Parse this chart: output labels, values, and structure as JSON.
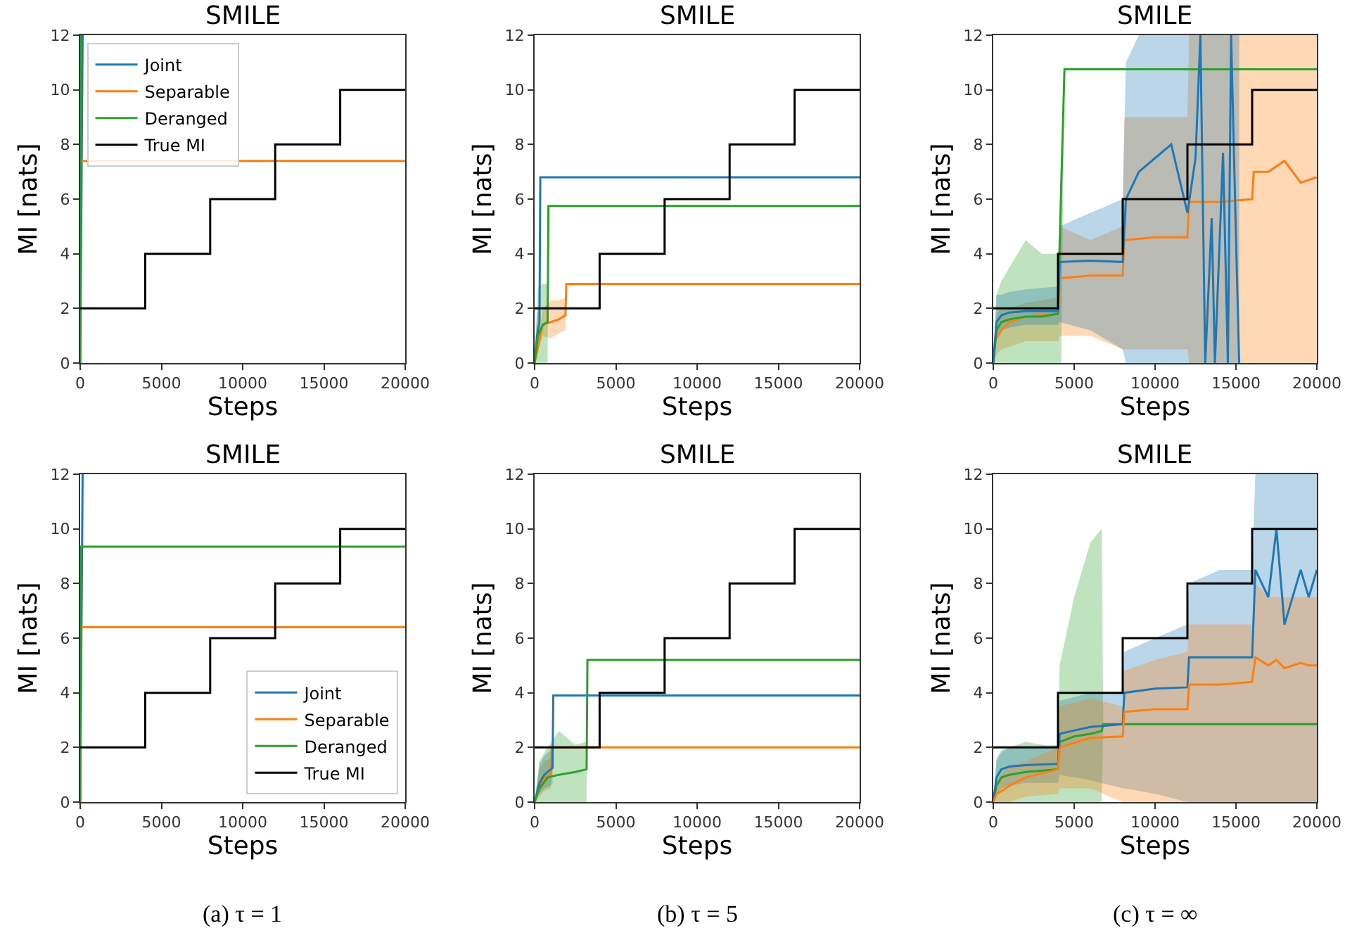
{
  "chart_data": [
    {
      "type": "line",
      "title": "SMILE",
      "xlabel": "Steps",
      "ylabel": "MI [nats]",
      "xlim": [
        0,
        20000
      ],
      "ylim": [
        0,
        12
      ],
      "xticks": [
        0,
        5000,
        10000,
        15000,
        20000
      ],
      "yticks": [
        0,
        2,
        4,
        6,
        8,
        10,
        12
      ],
      "legend": "top left",
      "series": [
        {
          "name": "Joint",
          "color": "#1f77b4",
          "x": [
            0,
            150
          ],
          "values": [
            0,
            12
          ]
        },
        {
          "name": "Separable",
          "color": "#ff7f0e",
          "x": [
            40,
            20000
          ],
          "values": [
            7.4,
            7.4
          ]
        },
        {
          "name": "Deranged",
          "color": "#2ca02c",
          "x": [
            0,
            50
          ],
          "values": [
            0,
            12
          ]
        },
        {
          "name": "True MI",
          "color": "#000000",
          "x": [
            0,
            4000,
            4000,
            8000,
            8000,
            12000,
            12000,
            16000,
            16000,
            20000
          ],
          "values": [
            2,
            2,
            4,
            4,
            6,
            6,
            8,
            8,
            10,
            10
          ]
        }
      ]
    },
    {
      "type": "line",
      "title": "SMILE",
      "xlabel": "Steps",
      "ylabel": "MI [nats]",
      "xlim": [
        0,
        20000
      ],
      "ylim": [
        0,
        12
      ],
      "xticks": [
        0,
        5000,
        10000,
        15000,
        20000
      ],
      "yticks": [
        0,
        2,
        4,
        6,
        8,
        10,
        12
      ],
      "series": [
        {
          "color": "#1f77b4",
          "x": [
            0,
            150,
            300,
            350,
            20000
          ],
          "values": [
            0,
            1.0,
            1.5,
            6.8,
            6.8
          ],
          "lower": [
            0,
            0.5,
            1.0,
            6.8,
            6.8
          ],
          "upper": [
            0,
            1.8,
            2.0,
            6.8,
            6.8
          ]
        },
        {
          "color": "#ff7f0e",
          "x": [
            0,
            500,
            1000,
            1500,
            1900,
            1950,
            20000
          ],
          "values": [
            0,
            1.4,
            1.5,
            1.6,
            1.75,
            2.9,
            2.9
          ],
          "lower": [
            0,
            1.0,
            0.9,
            1.1,
            1.2,
            2.9,
            2.9
          ],
          "upper": [
            0,
            2.0,
            2.3,
            2.3,
            2.4,
            2.9,
            2.9
          ]
        },
        {
          "color": "#2ca02c",
          "x": [
            0,
            200,
            500,
            800,
            850,
            20000
          ],
          "values": [
            0,
            1.0,
            1.4,
            1.5,
            5.75,
            5.75
          ],
          "lower": [
            0,
            0,
            0,
            0,
            5.75,
            5.75
          ],
          "upper": [
            0,
            2.8,
            2.9,
            2.9,
            5.75,
            5.75
          ]
        },
        {
          "color": "#000000",
          "x": [
            0,
            4000,
            4000,
            8000,
            8000,
            12000,
            12000,
            16000,
            16000,
            20000
          ],
          "values": [
            2,
            2,
            4,
            4,
            6,
            6,
            8,
            8,
            10,
            10
          ]
        }
      ]
    },
    {
      "type": "line",
      "title": "SMILE",
      "xlabel": "Steps",
      "ylabel": "MI [nats]",
      "xlim": [
        0,
        20000
      ],
      "ylim": [
        0,
        12
      ],
      "xticks": [
        0,
        5000,
        10000,
        15000,
        20000
      ],
      "yticks": [
        0,
        2,
        4,
        6,
        8,
        10,
        12
      ],
      "series": [
        {
          "color": "#ff7f0e",
          "x": [
            0,
            200,
            500,
            1000,
            2000,
            4000,
            4100,
            6000,
            8000,
            8100,
            10000,
            12000,
            12100,
            14000,
            16000,
            16100,
            17000,
            18000,
            19000,
            20000
          ],
          "values": [
            null,
            0.9,
            1.2,
            1.5,
            1.7,
            1.8,
            3.1,
            3.2,
            3.2,
            4.5,
            4.6,
            4.6,
            5.9,
            5.9,
            6.0,
            7.0,
            7.0,
            7.4,
            6.6,
            6.8
          ],
          "lower": [
            0,
            0.3,
            0.5,
            0.6,
            0.8,
            0.8,
            1.0,
            1.0,
            0.5,
            0.5,
            0.5,
            0.5,
            0,
            0,
            0,
            0,
            0,
            0,
            0,
            0
          ],
          "upper": [
            0,
            1.8,
            2.0,
            2.0,
            2.2,
            2.4,
            5.0,
            4.5,
            5.0,
            9.0,
            9.0,
            9.0,
            12,
            12,
            12,
            12,
            12,
            12,
            12,
            12
          ]
        },
        {
          "color": "#2ca02c",
          "x": [
            0,
            200,
            500,
            1000,
            2000,
            3000,
            4000,
            4200,
            4400,
            20000
          ],
          "values": [
            0,
            1.2,
            1.5,
            1.6,
            1.7,
            1.7,
            1.8,
            6.5,
            10.75,
            10.75
          ],
          "lower": [
            0,
            0,
            0,
            0,
            0,
            0,
            0,
            0,
            10.75,
            10.75
          ],
          "upper": [
            0,
            2.5,
            3.0,
            3.5,
            4.5,
            4.0,
            4.0,
            7.0,
            10.75,
            10.75
          ]
        },
        {
          "color": "#1f77b4",
          "x": [
            0,
            200,
            500,
            1000,
            2000,
            4000,
            4100,
            6000,
            8000,
            8200,
            9000,
            10000,
            11000,
            12000,
            12500,
            12800,
            13100,
            13500,
            13700,
            14200,
            14500,
            14700,
            15000,
            15200
          ],
          "values": [
            0,
            1.5,
            1.75,
            1.85,
            1.9,
            1.9,
            3.7,
            3.75,
            3.7,
            6.0,
            7.0,
            7.5,
            8.0,
            5.5,
            7.5,
            12,
            0,
            5.3,
            0,
            7.7,
            0,
            12,
            4.6,
            0
          ],
          "lower": [
            0,
            0.8,
            1.2,
            1.3,
            1.4,
            1.4,
            1.5,
            1.2,
            0.5,
            0,
            0,
            0,
            0,
            0,
            0,
            0,
            0,
            0,
            0,
            0,
            0,
            0,
            0,
            0
          ],
          "upper": [
            0,
            2.5,
            2.5,
            2.6,
            2.7,
            2.8,
            5.0,
            5.5,
            6.0,
            11,
            12,
            12,
            12,
            12,
            12,
            12,
            12,
            12,
            12,
            12,
            12,
            12,
            12,
            12
          ]
        },
        {
          "color": "#000000",
          "x": [
            0,
            4000,
            4000,
            8000,
            8000,
            12000,
            12000,
            16000,
            16000,
            20000
          ],
          "values": [
            2,
            2,
            4,
            4,
            6,
            6,
            8,
            8,
            10,
            10
          ]
        }
      ]
    },
    {
      "type": "line",
      "title": "SMILE",
      "xlabel": "Steps",
      "ylabel": "MI [nats]",
      "xlim": [
        0,
        20000
      ],
      "ylim": [
        0,
        12
      ],
      "xticks": [
        0,
        5000,
        10000,
        15000,
        20000
      ],
      "yticks": [
        0,
        2,
        4,
        6,
        8,
        10,
        12
      ],
      "legend": "bottom right",
      "annotations": [
        "(a) τ = 1"
      ],
      "series": [
        {
          "name": "Joint",
          "color": "#1f77b4",
          "x": [
            0,
            150
          ],
          "values": [
            0,
            12
          ]
        },
        {
          "name": "Separable",
          "color": "#ff7f0e",
          "x": [
            0,
            40,
            20000
          ],
          "values": [
            0,
            6.4,
            6.4
          ]
        },
        {
          "name": "Deranged",
          "color": "#2ca02c",
          "x": [
            0,
            40,
            20000
          ],
          "values": [
            0,
            9.35,
            9.35
          ]
        },
        {
          "name": "True MI",
          "color": "#000000",
          "x": [
            0,
            4000,
            4000,
            8000,
            8000,
            12000,
            12000,
            16000,
            16000,
            20000
          ],
          "values": [
            2,
            2,
            4,
            4,
            6,
            6,
            8,
            8,
            10,
            10
          ]
        }
      ]
    },
    {
      "type": "line",
      "title": "SMILE",
      "xlabel": "Steps",
      "ylabel": "MI [nats]",
      "xlim": [
        0,
        20000
      ],
      "ylim": [
        0,
        12
      ],
      "xticks": [
        0,
        5000,
        10000,
        15000,
        20000
      ],
      "yticks": [
        0,
        2,
        4,
        6,
        8,
        10,
        12
      ],
      "annotations": [
        "(b) τ = 5"
      ],
      "series": [
        {
          "color": "#ff7f0e",
          "x": [
            0,
            300,
            600,
            1000,
            1050,
            20000
          ],
          "values": [
            0,
            0.6,
            0.9,
            1.0,
            2.0,
            2.0
          ],
          "lower": [
            0,
            0.2,
            0.4,
            0.5,
            2.0,
            2.0
          ],
          "upper": [
            0,
            1.2,
            1.5,
            1.6,
            2.0,
            2.0
          ]
        },
        {
          "color": "#1f77b4",
          "x": [
            0,
            300,
            600,
            1000,
            1100,
            1150,
            20000
          ],
          "values": [
            0,
            0.7,
            1.0,
            1.2,
            1.25,
            3.9,
            3.9
          ],
          "lower": [
            0,
            0.3,
            0.5,
            0.6,
            0.7,
            3.9,
            3.9
          ],
          "upper": [
            0,
            1.4,
            1.7,
            1.9,
            2.0,
            3.9,
            3.9
          ]
        },
        {
          "color": "#2ca02c",
          "x": [
            0,
            300,
            800,
            1500,
            2500,
            3200,
            3250,
            20000
          ],
          "values": [
            0,
            0.5,
            0.9,
            1.0,
            1.1,
            1.2,
            5.2,
            5.2
          ],
          "lower": [
            0,
            0,
            0,
            0,
            0,
            0,
            5.2,
            5.2
          ],
          "upper": [
            0,
            1.5,
            2.0,
            2.6,
            2.1,
            2.2,
            5.2,
            5.2
          ]
        },
        {
          "color": "#000000",
          "x": [
            0,
            4000,
            4000,
            8000,
            8000,
            12000,
            12000,
            16000,
            16000,
            20000
          ],
          "values": [
            2,
            2,
            4,
            4,
            6,
            6,
            8,
            8,
            10,
            10
          ]
        }
      ]
    },
    {
      "type": "line",
      "title": "SMILE",
      "xlabel": "Steps",
      "ylabel": "MI [nats]",
      "xlim": [
        0,
        20000
      ],
      "ylim": [
        0,
        12
      ],
      "xticks": [
        0,
        5000,
        10000,
        15000,
        20000
      ],
      "yticks": [
        0,
        2,
        4,
        6,
        8,
        10,
        12
      ],
      "annotations": [
        "(c) τ = ∞"
      ],
      "series": [
        {
          "color": "#2ca02c",
          "x": [
            0,
            200,
            500,
            1000,
            2000,
            4000,
            4100,
            5000,
            6000,
            6700,
            6800,
            20000
          ],
          "values": [
            0,
            0.6,
            0.9,
            1.0,
            1.1,
            1.2,
            2.2,
            2.4,
            2.5,
            2.6,
            2.85,
            2.85
          ],
          "lower": [
            0,
            0,
            0,
            0,
            0,
            0,
            0,
            0,
            0,
            0,
            2.85,
            2.85
          ],
          "upper": [
            0,
            1.5,
            1.8,
            2.0,
            2.2,
            2.0,
            5.0,
            7.5,
            9.5,
            10.0,
            2.85,
            2.85
          ]
        },
        {
          "color": "#1f77b4",
          "x": [
            0,
            200,
            500,
            1000,
            2000,
            4000,
            4100,
            6000,
            8000,
            8100,
            10000,
            12000,
            12100,
            14000,
            16000,
            16200,
            17000,
            17500,
            18000,
            19000,
            19500,
            20000
          ],
          "values": [
            0,
            0.9,
            1.2,
            1.3,
            1.35,
            1.4,
            2.5,
            2.75,
            2.85,
            4.0,
            4.15,
            4.2,
            5.3,
            5.3,
            5.3,
            8.5,
            7.5,
            10,
            6.5,
            8.5,
            7.5,
            8.5
          ],
          "lower": [
            0,
            0.3,
            0.5,
            0.6,
            0.7,
            0.7,
            1.0,
            0.8,
            0.5,
            0.5,
            0.3,
            0,
            0,
            0,
            0,
            0,
            0,
            0,
            0,
            0,
            0,
            0
          ],
          "upper": [
            0,
            1.6,
            1.9,
            2.0,
            2.0,
            2.1,
            3.7,
            4.0,
            4.0,
            5.5,
            6.0,
            6.5,
            8.0,
            8.5,
            8.5,
            12,
            12,
            12,
            12,
            12,
            12,
            12
          ]
        },
        {
          "color": "#ff7f0e",
          "x": [
            0,
            200,
            500,
            1000,
            2000,
            4000,
            4100,
            6000,
            8000,
            8100,
            10000,
            12000,
            12100,
            14000,
            16000,
            16200,
            17000,
            17500,
            18000,
            19000,
            19500,
            20000
          ],
          "values": [
            0,
            0.3,
            0.4,
            0.6,
            0.9,
            1.2,
            2.0,
            2.35,
            2.4,
            3.3,
            3.4,
            3.4,
            4.3,
            4.3,
            4.4,
            5.3,
            5.0,
            5.2,
            4.9,
            5.1,
            5.0,
            5.0
          ],
          "lower": [
            0,
            0,
            0,
            0,
            0.2,
            0.3,
            0.5,
            0.5,
            0,
            0,
            0,
            0,
            0,
            0,
            0,
            0,
            0,
            0,
            0,
            0,
            0,
            0
          ],
          "upper": [
            0,
            0.8,
            1.0,
            1.3,
            1.5,
            2.0,
            3.5,
            3.8,
            3.5,
            4.8,
            5.2,
            5.5,
            6.5,
            6.5,
            6.5,
            8.0,
            7.5,
            7.5,
            7.5,
            7.5,
            7.5,
            7.5
          ]
        },
        {
          "color": "#000000",
          "x": [
            0,
            4000,
            4000,
            8000,
            8000,
            12000,
            12000,
            16000,
            16000,
            20000
          ],
          "values": [
            2,
            2,
            4,
            4,
            6,
            6,
            8,
            8,
            10,
            10
          ]
        }
      ]
    }
  ]
}
